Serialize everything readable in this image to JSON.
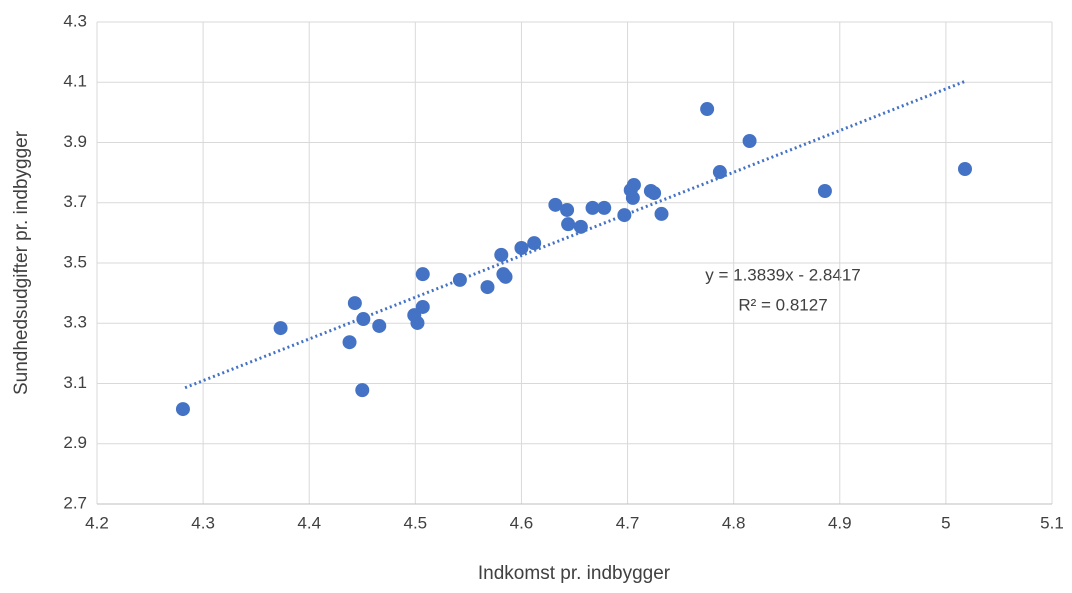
{
  "chart_data": {
    "type": "scatter",
    "x_label": "Indkomst pr. indbygger",
    "y_label": "Sundhedsudgifter pr. indbygger",
    "series": [
      {
        "color": "#4472c4",
        "x": [
          4.281,
          4.373,
          4.443,
          4.438,
          4.451,
          4.45,
          4.466,
          4.499,
          4.502,
          4.507,
          4.507,
          4.542,
          4.568,
          4.581,
          4.583,
          4.585,
          4.6,
          4.612,
          4.632,
          4.643,
          4.644,
          4.656,
          4.667,
          4.678,
          4.697,
          4.703,
          4.706,
          4.705,
          4.722,
          4.725,
          4.732,
          4.775,
          4.787,
          4.815,
          4.886,
          5.018
        ],
        "values": [
          3.015,
          3.284,
          3.367,
          3.237,
          3.314,
          3.078,
          3.291,
          3.327,
          3.301,
          3.354,
          3.463,
          3.444,
          3.42,
          3.527,
          3.463,
          3.454,
          3.55,
          3.566,
          3.693,
          3.676,
          3.629,
          3.62,
          3.683,
          3.683,
          3.659,
          3.742,
          3.759,
          3.716,
          3.739,
          3.732,
          3.663,
          4.011,
          3.802,
          3.905,
          3.739,
          3.812
        ]
      }
    ],
    "trendline": {
      "color": "#4472c4",
      "x": [
        4.283,
        5.018
      ],
      "values": [
        3.086,
        4.103
      ],
      "equation": "y = 1.3839x - 2.8417",
      "r_squared": "R² = 0.8127"
    },
    "xlim": [
      4.2,
      5.1
    ],
    "xticks": [
      4.2,
      4.3,
      4.4,
      4.5,
      4.6,
      4.7,
      4.8,
      4.9,
      5,
      5.1
    ],
    "ylim": [
      2.7,
      4.3
    ],
    "yticks": [
      2.7,
      2.9,
      3.1,
      3.3,
      3.5,
      3.7,
      3.9,
      4.1,
      4.3
    ],
    "grid": true
  }
}
